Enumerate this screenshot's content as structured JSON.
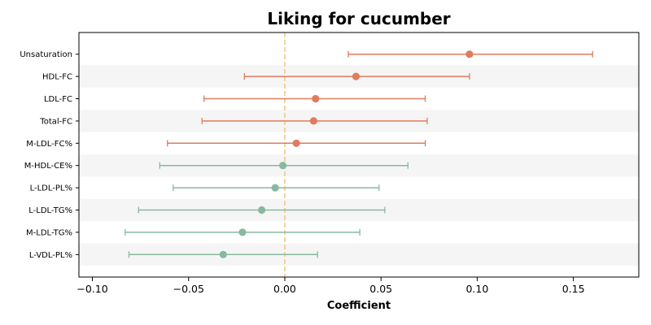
{
  "chart_data": {
    "type": "forest",
    "title": "Liking for cucumber",
    "xlabel": "Coefficient",
    "ylabel": "",
    "xlim": [
      -0.107,
      0.184
    ],
    "xticks": [
      -0.1,
      -0.05,
      0.0,
      0.05,
      0.1,
      0.15
    ],
    "xtick_labels": [
      "−0.10",
      "−0.05",
      "0.00",
      "0.05",
      "0.10",
      "0.15"
    ],
    "reference_line": {
      "x": 0.0,
      "style": "dashed",
      "color": "#f0c987"
    },
    "grid": false,
    "alternating_row_bands": true,
    "colors": {
      "positive": "#e07b5f",
      "negative": "#88b9a0",
      "band": "#f5f5f5",
      "axis": "#000000"
    },
    "points": [
      {
        "label": "Unsaturation",
        "estimate": 0.096,
        "lower": 0.033,
        "upper": 0.16,
        "group": "positive"
      },
      {
        "label": "HDL-FC",
        "estimate": 0.037,
        "lower": -0.021,
        "upper": 0.096,
        "group": "positive"
      },
      {
        "label": "LDL-FC",
        "estimate": 0.016,
        "lower": -0.042,
        "upper": 0.073,
        "group": "positive"
      },
      {
        "label": "Total-FC",
        "estimate": 0.015,
        "lower": -0.043,
        "upper": 0.074,
        "group": "positive"
      },
      {
        "label": "M-LDL-FC%",
        "estimate": 0.006,
        "lower": -0.061,
        "upper": 0.073,
        "group": "positive"
      },
      {
        "label": "M-HDL-CE%",
        "estimate": -0.001,
        "lower": -0.065,
        "upper": 0.064,
        "group": "negative"
      },
      {
        "label": "L-LDL-PL%",
        "estimate": -0.005,
        "lower": -0.058,
        "upper": 0.049,
        "group": "negative"
      },
      {
        "label": "L-LDL-TG%",
        "estimate": -0.012,
        "lower": -0.076,
        "upper": 0.052,
        "group": "negative"
      },
      {
        "label": "M-LDL-TG%",
        "estimate": -0.022,
        "lower": -0.083,
        "upper": 0.039,
        "group": "negative"
      },
      {
        "label": "L-VDL-PL%",
        "estimate": -0.032,
        "lower": -0.081,
        "upper": 0.017,
        "group": "negative"
      }
    ]
  }
}
